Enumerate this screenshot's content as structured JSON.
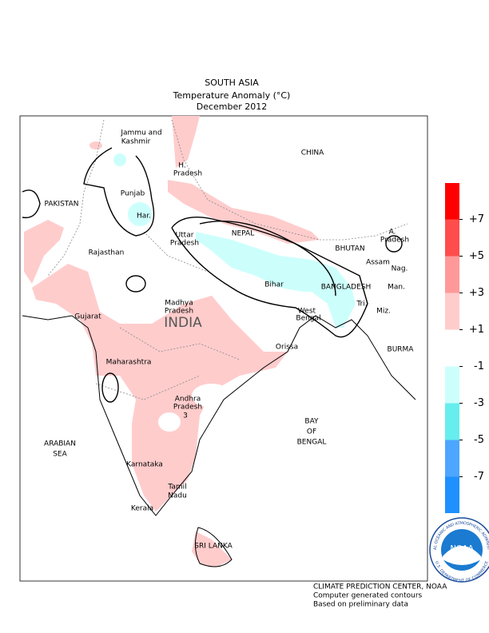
{
  "header": {
    "title": "SOUTH ASIA",
    "subtitle": "Temperature Anomaly (°C)",
    "date": "December 2012"
  },
  "labels": [
    "Jammu and",
    "Kashmir",
    "H.",
    "Pradesh",
    "CHINA",
    "PAKISTAN",
    "Punjab",
    "Har.",
    "Rajasthan",
    "NEPAL",
    "A.",
    "Pradesh",
    "BHUTAN",
    "Assam",
    "Nag.",
    "Uttar",
    "Pradesh",
    "Bihar",
    "BANGLADESH",
    "Man.",
    "Madhya",
    "Pradesh",
    "West",
    "Bengal",
    "Tri.",
    "Miz.",
    "Gujarat",
    "INDIA",
    "Orissa",
    "BURMA",
    "Maharashtra",
    "Andhra",
    "Pradesh",
    "3",
    "BAY",
    "OF",
    "BENGAL",
    "ARABIAN",
    "SEA",
    "Karnataka",
    "Tamil",
    "Nadu",
    "Kerala",
    "SRI LANKA"
  ],
  "colorbar": {
    "ticks": [
      {
        "value": 7,
        "label": "+7"
      },
      {
        "value": 5,
        "label": "+5"
      },
      {
        "value": 3,
        "label": "+3"
      },
      {
        "value": 1,
        "label": "+1"
      },
      -1,
      -3,
      -5,
      -7
    ],
    "colors": [
      "#ff0000",
      "#ff4d4d",
      "#ff9999",
      "#ffcccc",
      "#ffffff",
      "#ccfffc",
      "#66eeee",
      "#4da6ff",
      "#1e90ff"
    ]
  },
  "footer": [
    "CLIMATE PREDICTION CENTER, NOAA",
    "Computer generated contours",
    "Based on preliminary data"
  ],
  "logo": {
    "name": "NOAA",
    "ring_top": "NATIONAL OCEANIC AND ATMOSPHERIC ADMINISTRATION",
    "ring_bottom": "U.S. DEPARTMENT OF COMMERCE"
  }
}
